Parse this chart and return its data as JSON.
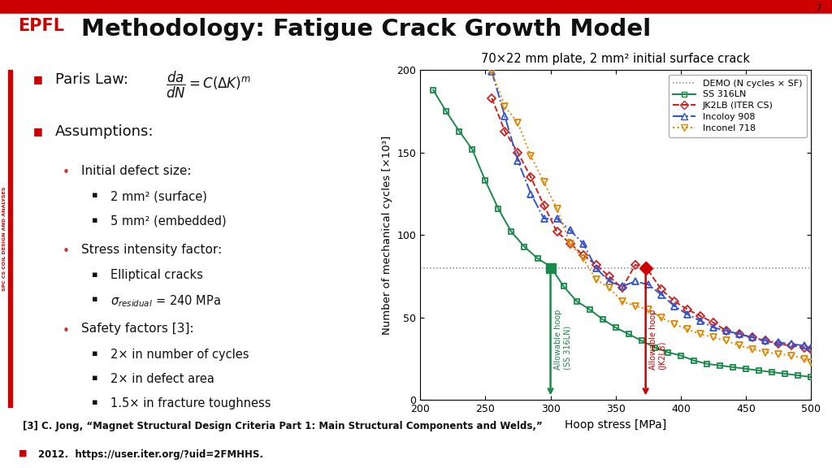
{
  "slide_bg": "#ffffff",
  "header_bg": "#ffffff",
  "epfl_color": "#cc0000",
  "epfl_text": "EPFL",
  "page_num": "7",
  "slide_title": "Methodology: Fatigue Crack Growth Model",
  "sidebar_text": "SPC CS COIL DESIGN AND ANALYSES",
  "footer_line1": "[3] C. Jong, “Magnet Structural Design Criteria Part 1: Main Structural Components and Welds,”",
  "footer_line2": "2012.  https://user.iter.org/?uid=2FMHHS.",
  "chart_title": "70×22 mm plate, 2 mm² initial surface crack",
  "xlabel": "Hoop stress [MPa]",
  "ylabel": "Number of mechanical cycles [×10³]",
  "xlim": [
    200,
    500
  ],
  "ylim": [
    0,
    200
  ],
  "demo_level": 80,
  "allowable_ss316ln_x": 300,
  "allowable_jk2lb_x": 373,
  "ss316ln_color": "#1a8a4a",
  "jk2lb_color": "#cc2222",
  "incoloy_color": "#3355cc",
  "inconel_color": "#dd8800",
  "ss316ln_x": [
    210,
    220,
    230,
    240,
    250,
    260,
    270,
    280,
    290,
    300,
    310,
    320,
    330,
    340,
    350,
    360,
    370,
    380,
    390,
    400,
    410,
    420,
    430,
    440,
    450,
    460,
    470,
    480,
    490,
    500
  ],
  "ss316ln_y": [
    188,
    175,
    163,
    152,
    133,
    116,
    102,
    93,
    86,
    81,
    69,
    60,
    55,
    49,
    44,
    40,
    36,
    32,
    29,
    27,
    24,
    22,
    21,
    20,
    19,
    18,
    17,
    16,
    15,
    14
  ],
  "jk2lb_x": [
    255,
    265,
    275,
    285,
    295,
    305,
    315,
    325,
    335,
    345,
    355,
    365,
    373,
    385,
    395,
    405,
    415,
    425,
    435,
    445,
    455,
    465,
    475,
    485,
    495,
    500
  ],
  "jk2lb_y": [
    183,
    163,
    150,
    135,
    118,
    102,
    95,
    88,
    82,
    75,
    68,
    82,
    81,
    67,
    60,
    55,
    51,
    47,
    42,
    40,
    38,
    36,
    34,
    33,
    32,
    31
  ],
  "incoloy_x": [
    255,
    265,
    275,
    285,
    295,
    305,
    315,
    325,
    335,
    345,
    355,
    365,
    375,
    385,
    395,
    405,
    415,
    425,
    435,
    445,
    455,
    465,
    475,
    485,
    495,
    500
  ],
  "incoloy_y": [
    199,
    172,
    145,
    125,
    110,
    110,
    103,
    95,
    80,
    72,
    69,
    72,
    70,
    64,
    57,
    52,
    48,
    44,
    42,
    40,
    38,
    36,
    35,
    34,
    33,
    32
  ],
  "inconel_x": [
    255,
    265,
    275,
    285,
    295,
    305,
    315,
    325,
    335,
    345,
    355,
    365,
    375,
    385,
    395,
    405,
    415,
    425,
    435,
    445,
    455,
    465,
    475,
    485,
    495,
    500
  ],
  "inconel_y": [
    199,
    178,
    168,
    148,
    132,
    116,
    95,
    86,
    73,
    68,
    60,
    57,
    55,
    50,
    46,
    43,
    40,
    38,
    36,
    33,
    31,
    29,
    28,
    27,
    25,
    23
  ]
}
